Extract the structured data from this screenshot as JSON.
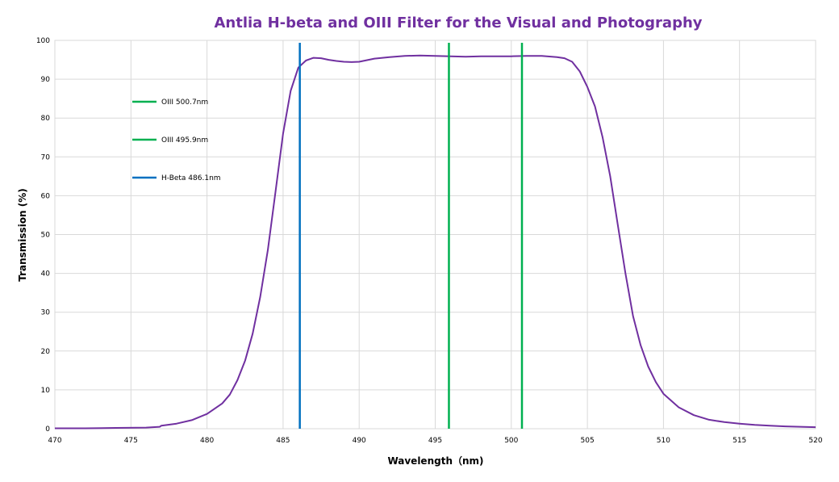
{
  "chart_data": {
    "type": "line",
    "title": "Antlia H-beta and OIII Filter for the Visual and Photography",
    "xlabel": "Wavelength（nm)",
    "ylabel": "Transmission  (%)",
    "xlim": [
      470,
      520
    ],
    "ylim": [
      0,
      100
    ],
    "x_ticks": [
      470,
      475,
      480,
      485,
      490,
      495,
      500,
      505,
      510,
      515,
      520
    ],
    "y_ticks": [
      0,
      10,
      20,
      30,
      40,
      50,
      60,
      70,
      80,
      90,
      100
    ],
    "grid": true,
    "legend_position": "top-left",
    "series": [
      {
        "name": "",
        "color": "#7030a0",
        "x": [
          470,
          472,
          474,
          476,
          476.9,
          477,
          478,
          479,
          480,
          481,
          481.5,
          482,
          482.5,
          483,
          483.5,
          484,
          484.5,
          485,
          485.5,
          486,
          486.5,
          487,
          487.5,
          488,
          488.5,
          489,
          489.5,
          490,
          491,
          492,
          493,
          494,
          495,
          496,
          497,
          498,
          499,
          500,
          501,
          502,
          503,
          503.5,
          504,
          504.5,
          505,
          505.5,
          506,
          506.5,
          507,
          507.5,
          508,
          508.5,
          509,
          509.5,
          510,
          511,
          512,
          513,
          514,
          515,
          516,
          517,
          518,
          519,
          520
        ],
        "y": [
          0.1,
          0.1,
          0.2,
          0.3,
          0.5,
          0.8,
          1.3,
          2.2,
          3.8,
          6.5,
          8.8,
          12.5,
          17.5,
          24.5,
          34,
          46,
          61,
          76,
          87,
          93,
          94.8,
          95.5,
          95.4,
          95,
          94.7,
          94.5,
          94.4,
          94.5,
          95.3,
          95.7,
          96,
          96.1,
          96,
          95.9,
          95.8,
          95.9,
          95.9,
          95.9,
          96,
          96,
          95.7,
          95.4,
          94.5,
          92,
          88,
          83,
          75,
          65,
          52.5,
          40,
          29,
          21.5,
          16,
          12,
          9,
          5.5,
          3.5,
          2.3,
          1.7,
          1.3,
          1,
          0.8,
          0.6,
          0.5,
          0.4
        ]
      }
    ],
    "vertical_lines": [
      {
        "name": "OIII 500.7nm",
        "x": 500.7,
        "color": "#00b050"
      },
      {
        "name": "OIII 495.9nm",
        "x": 495.9,
        "color": "#00b050"
      },
      {
        "name": "H-Beta 486.1nm",
        "x": 486.1,
        "color": "#0070c0"
      }
    ]
  }
}
